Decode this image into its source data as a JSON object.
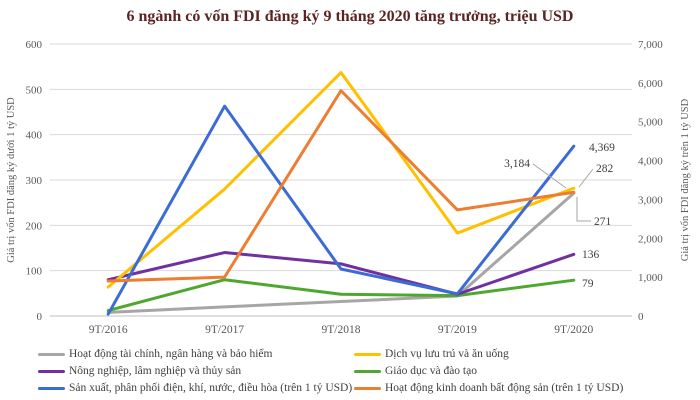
{
  "chart": {
    "title": "6 ngành có vốn FDI đăng ký 9 tháng 2020 tăng trưởng, triệu USD"
  },
  "chart_data": {
    "type": "line",
    "title": "6 ngành có vốn FDI đăng ký 9 tháng 2020 tăng trưởng, triệu USD",
    "categories": [
      "9T/2016",
      "9T/2017",
      "9T/2018",
      "9T/2019",
      "9T/2020"
    ],
    "left_axis": {
      "label": "Giá trị vốn FDI đăng ký dưới 1 tỷ USD",
      "min": 0,
      "max": 600,
      "tick_labels": [
        "0",
        "100",
        "200",
        "300",
        "400",
        "500",
        "600"
      ]
    },
    "right_axis": {
      "label": "Giá trị vốn FDI đăng ký trên 1 tỷ USD",
      "min": 0,
      "max": 7000,
      "tick_labels": [
        "0",
        "1,000",
        "2,000",
        "3,000",
        "4,000",
        "5,000",
        "6,000",
        "7,000"
      ]
    },
    "grid": "horizontal",
    "legend_position": "bottom",
    "series": [
      {
        "name": "Hoạt động tài chính, ngân hàng và bảo hiểm",
        "color": "#a6a6a6",
        "axis": "left",
        "values": [
          8,
          20,
          32,
          44,
          271
        ],
        "end_label": "271"
      },
      {
        "name": "Dịch vụ lưu trú và ăn uống",
        "color": "#ffc000",
        "axis": "left",
        "values": [
          64,
          280,
          537,
          183,
          282
        ],
        "end_label": "282"
      },
      {
        "name": "Nông nghiệp, lâm nghiệp và thủy sản",
        "color": "#7030a0",
        "axis": "left",
        "values": [
          80,
          140,
          115,
          48,
          136
        ],
        "end_label": "136"
      },
      {
        "name": "Giáo dục và đào tạo",
        "color": "#4ea72e",
        "axis": "left",
        "values": [
          12,
          80,
          48,
          45,
          79
        ],
        "end_label": "79"
      },
      {
        "name": "Sản xuất, phân phối điện, khí, nước, điều hòa (trên 1 tỷ USD)",
        "color": "#3b6cd6",
        "axis": "right",
        "values": [
          50,
          5400,
          1210,
          570,
          4369
        ],
        "end_label": "4,369"
      },
      {
        "name": "Hoạt động kinh doanh bất động sản (trên 1 tỷ USD)",
        "color": "#ed7d31",
        "axis": "right",
        "values": [
          900,
          1000,
          5800,
          2730,
          3184
        ],
        "end_label": "3,184"
      }
    ]
  },
  "colors": {
    "gridline": "#d9d9d9",
    "axis_line": "#bfbfbf",
    "tick_text": "#595959",
    "data_label_text": "#3f3f3f",
    "leader_line": "#a6a6a6",
    "title_text": "#5b2423"
  }
}
